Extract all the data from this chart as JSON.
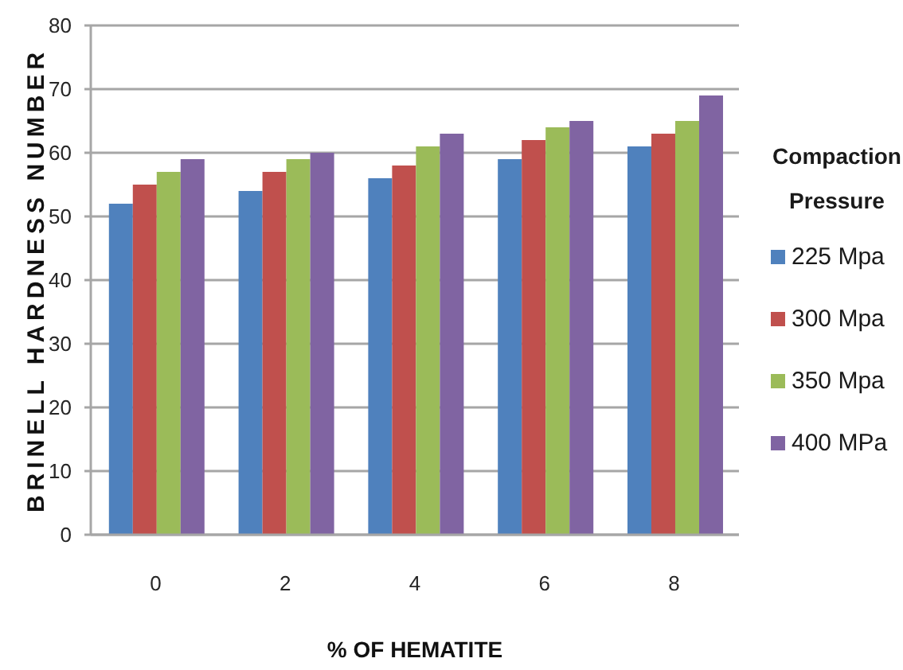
{
  "chart_data": {
    "type": "bar",
    "xlabel": "% OF HEMATITE",
    "ylabel": "BRINELL HARDNESS NUMBER",
    "legend_title": "Compaction Pressure",
    "categories": [
      "0",
      "2",
      "4",
      "6",
      "8"
    ],
    "series": [
      {
        "name": "225 Mpa",
        "color": "#4f81bd",
        "values": [
          52,
          54,
          56,
          59,
          61
        ]
      },
      {
        "name": "300 Mpa",
        "color": "#c0504d",
        "values": [
          55,
          57,
          58,
          62,
          63
        ]
      },
      {
        "name": "350 Mpa",
        "color": "#9bbb59",
        "values": [
          57,
          59,
          61,
          64,
          65
        ]
      },
      {
        "name": "400 MPa",
        "color": "#8064a2",
        "values": [
          59,
          60,
          63,
          65,
          69
        ]
      }
    ],
    "ylim": [
      0,
      80
    ],
    "yticks": [
      0,
      10,
      20,
      30,
      40,
      50,
      60,
      70,
      80
    ],
    "grid": "y",
    "legend": "right"
  }
}
